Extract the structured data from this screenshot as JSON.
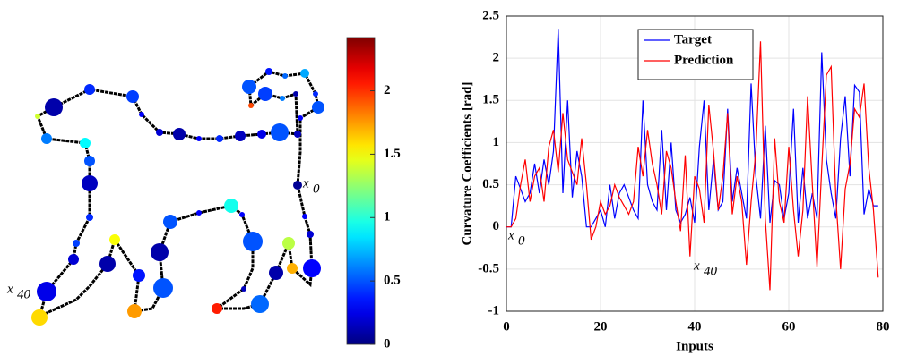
{
  "chart_data": [
    {
      "type": "curvature-map",
      "colormap": "jet",
      "clim": [
        0,
        2.42
      ],
      "colorbar_ticks": [
        0,
        0.5,
        1,
        1.5,
        2
      ],
      "values": [
        0.05,
        0.3,
        0.2,
        0.3,
        1.7,
        1.35,
        0.1,
        0.55,
        0.15,
        2.05,
        0.5,
        0.3,
        0.95,
        0.3,
        0.5,
        0.1,
        0.5,
        1.75,
        0.35,
        1.5,
        0.1,
        0.45,
        0.2,
        0.25,
        1.6,
        0.4,
        0.15,
        0.5,
        0.9,
        0.6,
        1.4,
        0.1,
        0.4,
        0.45,
        0.3,
        0.2,
        0.1,
        0.3,
        0.4,
        0.15,
        0.25,
        0.5,
        0.15,
        0.1,
        0.6,
        0.45,
        1.95,
        0.5,
        0.35,
        0.55,
        0.7,
        0.4,
        0.5,
        0.3
      ],
      "annotations": [
        {
          "text": "x",
          "sub": "0"
        },
        {
          "text": "x",
          "sub": "40"
        }
      ]
    },
    {
      "type": "line",
      "xlabel": "Inputs",
      "ylabel": "Curvature Coefficients [rad]",
      "x": [
        0,
        1,
        2,
        3,
        4,
        5,
        6,
        7,
        8,
        9,
        10,
        11,
        12,
        13,
        14,
        15,
        16,
        17,
        18,
        19,
        20,
        21,
        22,
        23,
        24,
        25,
        26,
        27,
        28,
        29,
        30,
        31,
        32,
        33,
        34,
        35,
        36,
        37,
        38,
        39,
        40,
        41,
        42,
        43,
        44,
        45,
        46,
        47,
        48,
        49,
        50,
        51,
        52,
        53,
        54,
        55,
        56,
        57,
        58,
        59,
        60,
        61,
        62,
        63,
        64,
        65,
        66,
        67,
        68,
        69,
        70,
        71,
        72,
        73,
        74,
        75,
        76,
        77,
        78,
        79
      ],
      "series": [
        {
          "name": "Target",
          "color": "#0000ff",
          "values": [
            0,
            0,
            0.6,
            0.45,
            0.3,
            0.4,
            0.75,
            0.4,
            0.8,
            0.5,
            0.9,
            2.35,
            0.4,
            1.5,
            0.35,
            0.9,
            0.6,
            0,
            0,
            0.1,
            0.2,
            0,
            0.5,
            0.1,
            0.4,
            0.5,
            0.35,
            0.2,
            0.1,
            1.5,
            0.5,
            0.3,
            0.2,
            1.15,
            0.2,
            1,
            0.2,
            0.05,
            0.15,
            0.35,
            0.05,
            0.95,
            1.5,
            0.2,
            0.8,
            0.2,
            0.3,
            1.4,
            0.3,
            0.7,
            0.4,
            0.1,
            1.7,
            0.6,
            0.1,
            1.2,
            0.05,
            0.55,
            0.5,
            0.1,
            0.4,
            1.4,
            0.05,
            0.7,
            0.1,
            0.4,
            0.1,
            2.07,
            0.8,
            0.4,
            0.1,
            1.05,
            1.55,
            0.6,
            1.68,
            1.6,
            0.15,
            0.45,
            0.25,
            0.25
          ]
        },
        {
          "name": "Prediction",
          "color": "#ff0000",
          "values": [
            0,
            0,
            0.1,
            0.5,
            0.8,
            0.3,
            0.6,
            0.7,
            0.3,
            0.95,
            1.15,
            0.65,
            1.35,
            0.8,
            0.65,
            0.5,
            1.05,
            0.5,
            -0.15,
            0,
            0.3,
            0.15,
            0.25,
            0.5,
            0.35,
            0.25,
            0.15,
            0.3,
            0.95,
            0.6,
            1.15,
            0.75,
            0.5,
            0.15,
            0.9,
            0.7,
            0.3,
            -0.05,
            0.85,
            -0.35,
            0.6,
            0.45,
            0.05,
            1.45,
            0.9,
            0.2,
            0.6,
            1.35,
            0.15,
            0.6,
            0.3,
            -0.45,
            0.3,
            0.9,
            2.2,
            0.1,
            -0.75,
            1.05,
            0.3,
            0.05,
            0.95,
            0.2,
            -0.35,
            0.2,
            1.55,
            0.5,
            -0.48,
            0.7,
            1.8,
            1.9,
            0.35,
            -0.5,
            0.45,
            0.75,
            1.4,
            1.3,
            1.7,
            0.7,
            0.2,
            -0.6
          ]
        }
      ],
      "xlim": [
        0,
        80
      ],
      "ylim": [
        -1,
        2.5
      ],
      "xticks": [
        0,
        20,
        40,
        60,
        80
      ],
      "yticks": [
        -1,
        -0.5,
        0,
        0.5,
        1,
        1.5,
        2,
        2.5
      ],
      "grid": true,
      "legend": "top",
      "annotations": [
        {
          "text": "x",
          "sub": "0"
        },
        {
          "text": "x",
          "sub": "40"
        }
      ]
    }
  ]
}
